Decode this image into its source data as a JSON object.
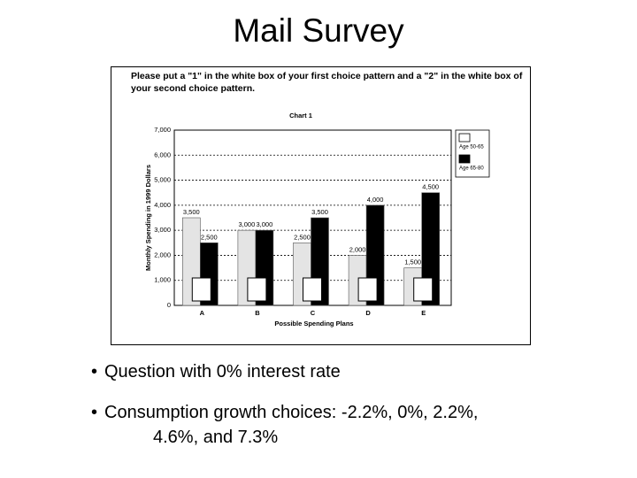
{
  "slide_title": "Mail Survey",
  "instruction": "Please put a \"1\" in the white box of your first choice pattern and a \"2\" in the white box of your second choice pattern.",
  "bullets": [
    "Question with 0% interest rate",
    "Consumption growth choices: -2.2%, 0%, 2.2%, 4.6%, and 7.3%"
  ],
  "chart_data": {
    "type": "bar",
    "title": "Chart 1",
    "x_label": "Possible Spending Plans",
    "y_label": "Monthly Spending in 1999 Dollars",
    "categories": [
      "A",
      "B",
      "C",
      "D",
      "E"
    ],
    "series": [
      {
        "name": "Age 50-65",
        "color": "#e4e4e4",
        "values": [
          3500,
          3000,
          2500,
          2000,
          1500
        ],
        "value_labels": [
          "3,500",
          "3,000",
          "2,500",
          "2,000",
          "1,500"
        ]
      },
      {
        "name": "Age 65-80",
        "color": "#000000",
        "values": [
          2500,
          3000,
          3500,
          4000,
          4500
        ],
        "value_labels": [
          "2,500",
          "3,000",
          "3,500",
          "4,000",
          "4,500"
        ]
      }
    ],
    "ylim": [
      0,
      7000
    ],
    "yticks": [
      0,
      {
        "value": 1000,
        "label": "1,000"
      },
      {
        "value": 2000,
        "label": "2,000"
      },
      {
        "value": 3000,
        "label": "3,000"
      },
      {
        "value": 4000,
        "label": "4,000"
      },
      {
        "value": 5000,
        "label": "5,000"
      },
      {
        "value": 6000,
        "label": "6,000"
      },
      {
        "value": 7000,
        "label": "7,000"
      }
    ],
    "grid": true,
    "legend": "upper right"
  }
}
